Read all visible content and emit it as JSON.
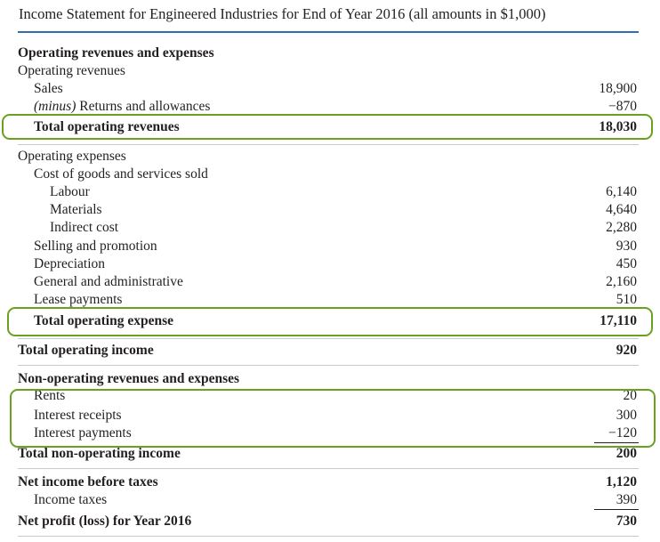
{
  "title": "Income Statement for Engineered Industries for End of Year 2016 (all amounts in $1,000)",
  "operating": {
    "section_header": "Operating revenues and expenses",
    "revenues_header": "Operating revenues",
    "sales_label": "Sales",
    "sales_value": "18,900",
    "returns_prefix": "(minus)",
    "returns_label": " Returns and allowances",
    "returns_value": "−870",
    "total_revenues_label": "Total operating revenues",
    "total_revenues_value": "18,030",
    "expenses_header": "Operating expenses",
    "cogs_header": "Cost of goods and services sold",
    "labour_label": "Labour",
    "labour_value": "6,140",
    "materials_label": "Materials",
    "materials_value": "4,640",
    "indirect_label": "Indirect cost",
    "indirect_value": "2,280",
    "selling_label": "Selling and promotion",
    "selling_value": "930",
    "depreciation_label": "Depreciation",
    "depreciation_value": "450",
    "general_label": "General and administrative",
    "general_value": "2,160",
    "lease_label": "Lease payments",
    "lease_value": "510",
    "total_expense_label": "Total operating expense",
    "total_expense_value": "17,110",
    "total_income_label": "Total operating income",
    "total_income_value": "920"
  },
  "non_operating": {
    "header": "Non-operating revenues and expenses",
    "rents_label": "Rents",
    "rents_value": "20",
    "interest_receipts_label": "Interest receipts",
    "interest_receipts_value": "300",
    "interest_payments_label": "Interest payments",
    "interest_payments_value": "−120",
    "total_label": "Total non-operating income",
    "total_value": "200"
  },
  "net": {
    "before_taxes_label": "Net income before taxes",
    "before_taxes_value": "1,120",
    "taxes_label": "Income taxes",
    "taxes_value": "390",
    "profit_label": "Net profit (loss) for Year 2016",
    "profit_value": "730"
  },
  "highlight_color": "#6aa121",
  "rule_color": "#2f6fb0"
}
